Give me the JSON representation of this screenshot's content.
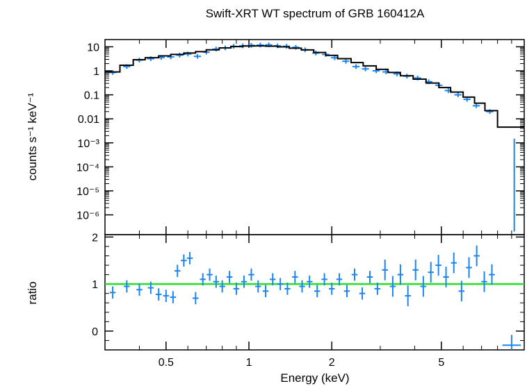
{
  "chart_data": [
    {
      "type": "scatter",
      "title": "Swift-XRT WT spectrum of GRB 160412A",
      "xlabel": "",
      "ylabel": "counts s⁻¹ keV⁻¹",
      "xscale": "log",
      "yscale": "log",
      "xlim": [
        0.3,
        10
      ],
      "ylim": [
        1.5e-07,
        20
      ],
      "yticks": [
        {
          "value": 10,
          "label": "10"
        },
        {
          "value": 1,
          "label": "1"
        },
        {
          "value": 0.1,
          "label": "0.1"
        },
        {
          "value": 0.01,
          "label": "0.01"
        },
        {
          "value": 0.001,
          "label": "10⁻³"
        },
        {
          "value": 0.0001,
          "label": "10⁻⁴"
        },
        {
          "value": 1e-05,
          "label": "10⁻⁵"
        },
        {
          "value": 1e-06,
          "label": "10⁻⁶"
        }
      ],
      "data_color": "#1a85f0",
      "model_color": "#000000",
      "data": [
        {
          "x": 0.32,
          "y": 0.85
        },
        {
          "x": 0.36,
          "y": 1.5
        },
        {
          "x": 0.4,
          "y": 2.8
        },
        {
          "x": 0.44,
          "y": 3.2
        },
        {
          "x": 0.48,
          "y": 3.6
        },
        {
          "x": 0.52,
          "y": 3.8
        },
        {
          "x": 0.56,
          "y": 4.5
        },
        {
          "x": 0.6,
          "y": 5.0
        },
        {
          "x": 0.65,
          "y": 4.0
        },
        {
          "x": 0.7,
          "y": 6.0
        },
        {
          "x": 0.76,
          "y": 8.0
        },
        {
          "x": 0.82,
          "y": 9.0
        },
        {
          "x": 0.88,
          "y": 10.5
        },
        {
          "x": 0.95,
          "y": 11.0
        },
        {
          "x": 1.02,
          "y": 11.5
        },
        {
          "x": 1.1,
          "y": 11.8
        },
        {
          "x": 1.18,
          "y": 12.0
        },
        {
          "x": 1.27,
          "y": 11.0
        },
        {
          "x": 1.37,
          "y": 10.5
        },
        {
          "x": 1.48,
          "y": 9.5
        },
        {
          "x": 1.6,
          "y": 7.5
        },
        {
          "x": 1.75,
          "y": 5.5
        },
        {
          "x": 1.9,
          "y": 4.8
        },
        {
          "x": 2.05,
          "y": 3.5
        },
        {
          "x": 2.25,
          "y": 2.5
        },
        {
          "x": 2.45,
          "y": 1.5
        },
        {
          "x": 2.65,
          "y": 1.2
        },
        {
          "x": 2.9,
          "y": 1.0
        },
        {
          "x": 3.15,
          "y": 0.9
        },
        {
          "x": 3.45,
          "y": 0.75
        },
        {
          "x": 3.75,
          "y": 0.6
        },
        {
          "x": 4.1,
          "y": 0.5
        },
        {
          "x": 4.5,
          "y": 0.35
        },
        {
          "x": 4.9,
          "y": 0.25
        },
        {
          "x": 5.3,
          "y": 0.15
        },
        {
          "x": 5.75,
          "y": 0.1
        },
        {
          "x": 6.2,
          "y": 0.065
        },
        {
          "x": 6.7,
          "y": 0.035
        },
        {
          "x": 7.5,
          "y": 0.02
        }
      ],
      "model": [
        {
          "x": 0.3,
          "y": 0.9
        },
        {
          "x": 0.34,
          "y": 1.7
        },
        {
          "x": 0.38,
          "y": 2.9
        },
        {
          "x": 0.42,
          "y": 3.5
        },
        {
          "x": 0.47,
          "y": 4.2
        },
        {
          "x": 0.52,
          "y": 4.8
        },
        {
          "x": 0.58,
          "y": 5.5
        },
        {
          "x": 0.64,
          "y": 6.3
        },
        {
          "x": 0.7,
          "y": 7.5
        },
        {
          "x": 0.78,
          "y": 9.0
        },
        {
          "x": 0.86,
          "y": 10.2
        },
        {
          "x": 0.95,
          "y": 10.8
        },
        {
          "x": 1.05,
          "y": 10.9
        },
        {
          "x": 1.15,
          "y": 10.6
        },
        {
          "x": 1.27,
          "y": 9.9
        },
        {
          "x": 1.4,
          "y": 8.8
        },
        {
          "x": 1.55,
          "y": 7.4
        },
        {
          "x": 1.72,
          "y": 5.8
        },
        {
          "x": 1.9,
          "y": 4.4
        },
        {
          "x": 2.1,
          "y": 3.2
        },
        {
          "x": 2.35,
          "y": 2.2
        },
        {
          "x": 2.6,
          "y": 1.6
        },
        {
          "x": 2.9,
          "y": 1.15
        },
        {
          "x": 3.2,
          "y": 0.85
        },
        {
          "x": 3.55,
          "y": 0.62
        },
        {
          "x": 3.95,
          "y": 0.45
        },
        {
          "x": 4.4,
          "y": 0.31
        },
        {
          "x": 4.9,
          "y": 0.2
        },
        {
          "x": 5.4,
          "y": 0.13
        },
        {
          "x": 6.0,
          "y": 0.08
        },
        {
          "x": 6.6,
          "y": 0.045
        },
        {
          "x": 7.2,
          "y": 0.022
        },
        {
          "x": 8.0,
          "y": 0.0045
        },
        {
          "x": 10.0,
          "y": 0.0045
        }
      ],
      "outlier": {
        "x": 9.2,
        "y_low": 2e-07,
        "y_high": 0.0015
      }
    },
    {
      "type": "scatter",
      "title": "",
      "xlabel": "Energy (keV)",
      "ylabel": "ratio",
      "xscale": "log",
      "xlim": [
        0.3,
        10
      ],
      "ylim": [
        -0.4,
        2.05
      ],
      "xticks": [
        {
          "value": 0.5,
          "label": "0.5"
        },
        {
          "value": 1,
          "label": "1"
        },
        {
          "value": 2,
          "label": "2"
        },
        {
          "value": 5,
          "label": "5"
        }
      ],
      "yticks": [
        {
          "value": 0,
          "label": "0"
        },
        {
          "value": 1,
          "label": "1"
        },
        {
          "value": 2,
          "label": "2"
        }
      ],
      "reference_line": 1,
      "reference_color": "#22e022",
      "data_color": "#1a85f0",
      "data": [
        {
          "x": 0.32,
          "y": 0.82
        },
        {
          "x": 0.36,
          "y": 0.95
        },
        {
          "x": 0.4,
          "y": 0.88
        },
        {
          "x": 0.44,
          "y": 0.92
        },
        {
          "x": 0.47,
          "y": 0.78
        },
        {
          "x": 0.5,
          "y": 0.75
        },
        {
          "x": 0.53,
          "y": 0.72
        },
        {
          "x": 0.55,
          "y": 1.28
        },
        {
          "x": 0.58,
          "y": 1.5
        },
        {
          "x": 0.61,
          "y": 1.55
        },
        {
          "x": 0.64,
          "y": 0.7
        },
        {
          "x": 0.68,
          "y": 1.1
        },
        {
          "x": 0.72,
          "y": 1.2
        },
        {
          "x": 0.76,
          "y": 1.05
        },
        {
          "x": 0.8,
          "y": 0.95
        },
        {
          "x": 0.85,
          "y": 1.15
        },
        {
          "x": 0.9,
          "y": 0.9
        },
        {
          "x": 0.96,
          "y": 1.05
        },
        {
          "x": 1.02,
          "y": 1.2
        },
        {
          "x": 1.08,
          "y": 0.95
        },
        {
          "x": 1.15,
          "y": 0.85
        },
        {
          "x": 1.22,
          "y": 1.1
        },
        {
          "x": 1.3,
          "y": 1.0
        },
        {
          "x": 1.38,
          "y": 0.9
        },
        {
          "x": 1.47,
          "y": 1.15
        },
        {
          "x": 1.56,
          "y": 0.95
        },
        {
          "x": 1.66,
          "y": 1.05
        },
        {
          "x": 1.77,
          "y": 0.85
        },
        {
          "x": 1.88,
          "y": 1.1
        },
        {
          "x": 2.0,
          "y": 0.9
        },
        {
          "x": 2.13,
          "y": 1.1
        },
        {
          "x": 2.27,
          "y": 0.85
        },
        {
          "x": 2.42,
          "y": 1.2
        },
        {
          "x": 2.58,
          "y": 0.8
        },
        {
          "x": 2.75,
          "y": 1.15
        },
        {
          "x": 2.93,
          "y": 0.9
        },
        {
          "x": 3.12,
          "y": 1.3
        },
        {
          "x": 3.33,
          "y": 0.95
        },
        {
          "x": 3.55,
          "y": 1.2
        },
        {
          "x": 3.78,
          "y": 0.75
        },
        {
          "x": 4.03,
          "y": 1.3
        },
        {
          "x": 4.3,
          "y": 0.95
        },
        {
          "x": 4.58,
          "y": 1.25
        },
        {
          "x": 4.88,
          "y": 1.4
        },
        {
          "x": 5.2,
          "y": 1.15
        },
        {
          "x": 5.55,
          "y": 1.45
        },
        {
          "x": 5.92,
          "y": 0.85
        },
        {
          "x": 6.3,
          "y": 1.35
        },
        {
          "x": 6.72,
          "y": 1.6
        },
        {
          "x": 7.16,
          "y": 1.05
        },
        {
          "x": 7.63,
          "y": 1.2
        },
        {
          "x": 9.0,
          "y": -0.3
        }
      ]
    }
  ]
}
